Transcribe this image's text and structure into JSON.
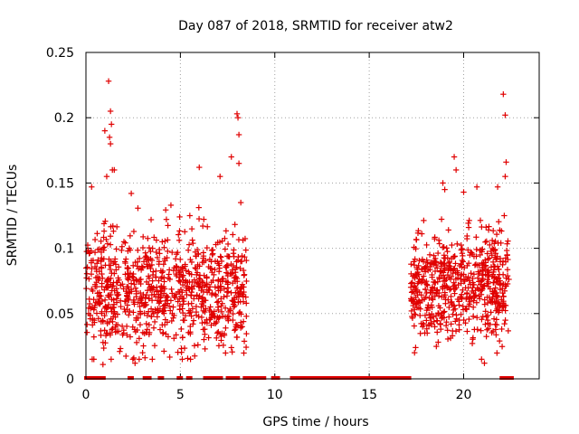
{
  "chart_data": {
    "type": "scatter",
    "title": "Day 087 of 2018, SRMTID for receiver atw2",
    "xlabel": "GPS time / hours",
    "ylabel": "SRMTID / TECUs",
    "xlim": [
      0,
      24
    ],
    "ylim": [
      0,
      0.25
    ],
    "grid": true,
    "marker": "+",
    "color": "#e00000",
    "x_ticks": [
      0,
      5,
      10,
      15,
      20
    ],
    "y_ticks": [
      0,
      0.05,
      0.1,
      0.15,
      0.2,
      0.25
    ],
    "x_tick_labels": [
      "0",
      "5",
      "10",
      "15",
      "20"
    ],
    "y_tick_labels": [
      "0",
      "0.05",
      "0.1",
      "0.15",
      "0.2",
      "0.25"
    ],
    "series": [
      {
        "name": "SRMTID",
        "segments": [
          {
            "x_start": 0.0,
            "x_end": 8.5,
            "mean": 0.068,
            "spread": 0.028,
            "count": 900
          },
          {
            "x_start": 17.2,
            "x_end": 22.4,
            "mean": 0.072,
            "spread": 0.025,
            "count": 620
          }
        ],
        "outliers": [
          [
            1.2,
            0.228
          ],
          [
            1.3,
            0.205
          ],
          [
            1.35,
            0.195
          ],
          [
            1.25,
            0.185
          ],
          [
            1.3,
            0.18
          ],
          [
            1.4,
            0.16
          ],
          [
            1.5,
            0.16
          ],
          [
            1.0,
            0.19
          ],
          [
            1.1,
            0.155
          ],
          [
            0.3,
            0.147
          ],
          [
            2.4,
            0.142
          ],
          [
            4.5,
            0.133
          ],
          [
            5.5,
            0.125
          ],
          [
            6.0,
            0.162
          ],
          [
            7.1,
            0.155
          ],
          [
            8.0,
            0.203
          ],
          [
            8.05,
            0.2
          ],
          [
            8.1,
            0.187
          ],
          [
            7.7,
            0.17
          ],
          [
            8.1,
            0.165
          ],
          [
            8.2,
            0.135
          ],
          [
            2.6,
            0.012
          ],
          [
            3.0,
            0.02
          ],
          [
            0.9,
            0.011
          ],
          [
            19.5,
            0.17
          ],
          [
            19.6,
            0.16
          ],
          [
            18.9,
            0.15
          ],
          [
            19.0,
            0.145
          ],
          [
            20.0,
            0.143
          ],
          [
            20.7,
            0.147
          ],
          [
            21.8,
            0.147
          ],
          [
            22.1,
            0.218
          ],
          [
            22.2,
            0.202
          ],
          [
            22.25,
            0.166
          ],
          [
            22.2,
            0.155
          ],
          [
            22.15,
            0.125
          ],
          [
            21.1,
            0.012
          ],
          [
            17.4,
            0.02
          ],
          [
            21.9,
            0.029
          ]
        ],
        "zero_bands": [
          [
            0.0,
            0.5
          ],
          [
            0.6,
            1.0
          ],
          [
            2.3,
            2.5
          ],
          [
            3.1,
            3.4
          ],
          [
            3.9,
            4.1
          ],
          [
            4.9,
            5.1
          ],
          [
            5.4,
            5.6
          ],
          [
            6.3,
            6.5
          ],
          [
            6.6,
            7.2
          ],
          [
            7.5,
            8.1
          ],
          [
            8.4,
            9.5
          ],
          [
            9.9,
            10.2
          ],
          [
            10.9,
            17.2
          ],
          [
            22.0,
            22.6
          ]
        ]
      }
    ]
  }
}
